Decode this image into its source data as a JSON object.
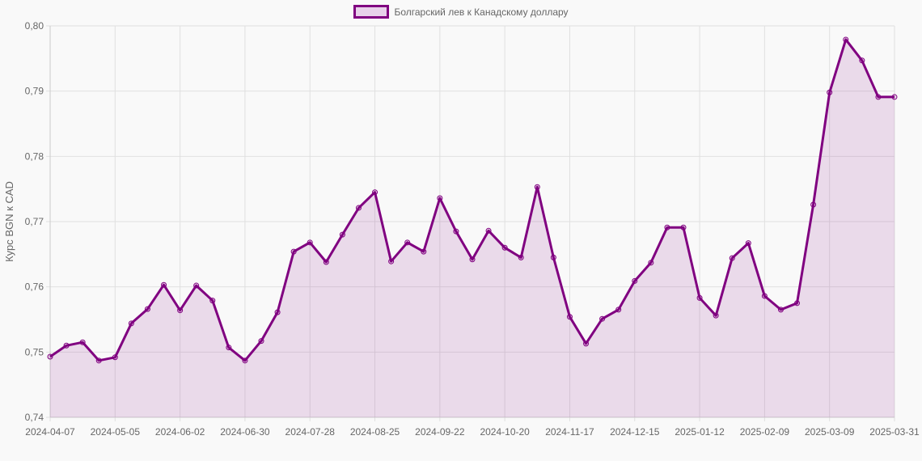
{
  "chart_data": {
    "type": "line",
    "title": "",
    "legend": [
      {
        "label": "Болгарский лев к Канадскому доллару",
        "color": "#800080",
        "fill": "rgba(128,0,128,0.1)"
      }
    ],
    "legend_position": "top",
    "xlabel": "",
    "ylabel": "Курс BGN к CAD",
    "ylim": [
      0.74,
      0.8
    ],
    "yticks": [
      "0,74",
      "0,75",
      "0,76",
      "0,77",
      "0,78",
      "0,79",
      "0,80"
    ],
    "xticks": [
      "2024-04-07",
      "2024-05-05",
      "2024-06-02",
      "2024-06-30",
      "2024-07-28",
      "2024-08-25",
      "2024-09-22",
      "2024-10-20",
      "2024-11-17",
      "2024-12-15",
      "2025-01-12",
      "2025-02-09",
      "2025-03-09",
      "2025-03-31"
    ],
    "grid": true,
    "series": [
      {
        "name": "Болгарский лев к Канадскому доллару",
        "values": [
          0.7493,
          0.751,
          0.7515,
          0.7487,
          0.7492,
          0.7544,
          0.7566,
          0.7603,
          0.7564,
          0.7602,
          0.7579,
          0.7507,
          0.7487,
          0.7517,
          0.7561,
          0.7654,
          0.7668,
          0.7638,
          0.768,
          0.7721,
          0.7745,
          0.7639,
          0.7668,
          0.7654,
          0.7736,
          0.7685,
          0.7642,
          0.7686,
          0.766,
          0.7645,
          0.7753,
          0.7645,
          0.7554,
          0.7513,
          0.7551,
          0.7565,
          0.7609,
          0.7637,
          0.7691,
          0.7691,
          0.7583,
          0.7556,
          0.7644,
          0.7667,
          0.7586,
          0.7565,
          0.7575,
          0.7726,
          0.7898,
          0.7979,
          0.7947,
          0.7891,
          0.7891
        ]
      }
    ]
  },
  "colors": {
    "line": "#800080",
    "fill": "#e8d9ea",
    "grid": "#dddddd",
    "text": "#666666"
  }
}
